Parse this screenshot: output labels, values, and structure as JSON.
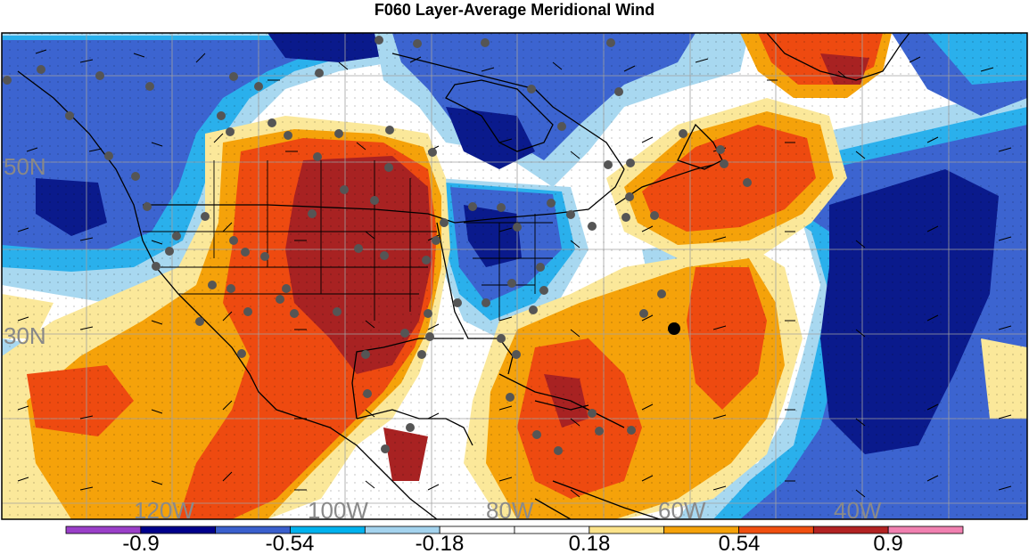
{
  "title": "F060 Layer-Average Meridional Wind",
  "lat_labels": [
    "50N",
    "30N"
  ],
  "lon_labels": [
    "120W",
    "100W",
    "80W",
    "60W",
    "40W"
  ],
  "colorbar": {
    "labels": [
      "-0.9",
      "-0.54",
      "-0.18",
      "0.18",
      "0.54",
      "0.9"
    ],
    "colors": [
      "#9a3fc8",
      "#00008b",
      "#3a5fcd",
      "#00b2ee",
      "#a4d3ee",
      "#ffffff",
      "#ffffff",
      "#fce38a",
      "#f5a20a",
      "#f04f10",
      "#b22222",
      "#f080b0"
    ]
  },
  "palette": {
    "dark_blue": "#0a1a8c",
    "blue": "#3c64d0",
    "cyan": "#2ab0ec",
    "light_blue": "#a8d8f0",
    "pale_yellow": "#fbe89a",
    "orange": "#f5a20a",
    "red_orange": "#ee4a10",
    "dark_red": "#a82222"
  },
  "markers": {
    "station_color": "#555555",
    "highlight_color": "#000000"
  }
}
